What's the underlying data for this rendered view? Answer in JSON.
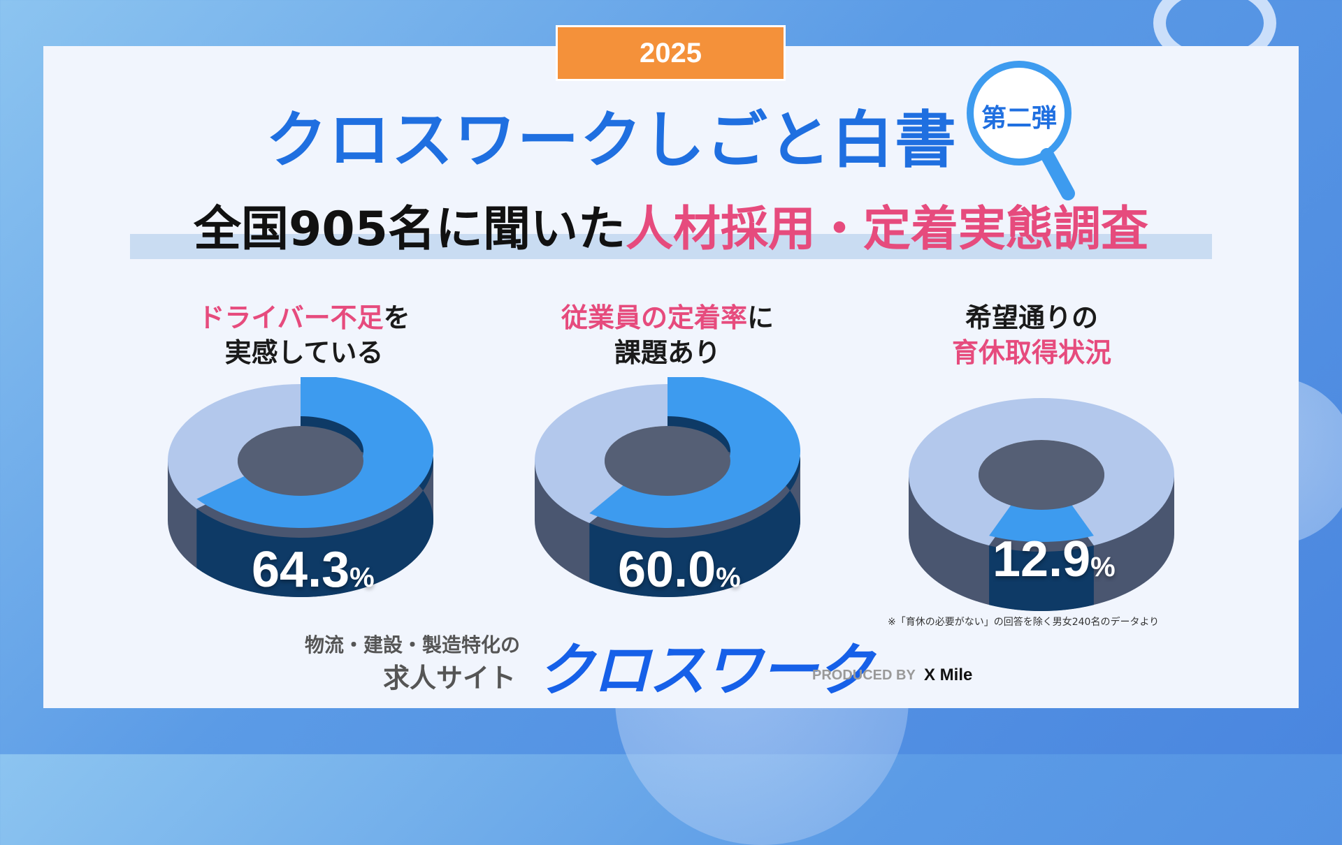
{
  "header": {
    "year": "2025",
    "title": "クロスワークしごと白書",
    "badge": "第二弾",
    "subtitle_black": "全国905名に聞いた",
    "subtitle_pink": "人材採用・定着実態調査"
  },
  "items": [
    {
      "label_pink": "ドライバー不足",
      "label_black": "を",
      "label_line2": "実感している",
      "value": "64.3",
      "unit": "%"
    },
    {
      "label_pink": "従業員の定着率",
      "label_black": "に",
      "label_line2": "課題あり",
      "value": "60.0",
      "unit": "%"
    },
    {
      "label_line1": "希望通りの",
      "label_pink2": "育休取得状況",
      "value": "12.9",
      "unit": "%"
    }
  ],
  "footnote": "※「育休の必要がない」の回答を除く男女240名のデータより",
  "footer": {
    "tag_line1": "物流・建設・製造特化の",
    "tag_line2": "求人サイト",
    "brand": "クロスワーク",
    "produced_by": "PRODUCED BY",
    "company": "X Mile"
  },
  "colors": {
    "accent_blue": "#1f6fe0",
    "pink": "#e64b7d",
    "orange": "#f4913a",
    "donut_highlight": "#3d9bef",
    "donut_rest": "#b3c8ec"
  },
  "chart_data": [
    {
      "type": "pie",
      "values": [
        64.3,
        35.7
      ]
    },
    {
      "type": "pie",
      "values": [
        60.0,
        40.0
      ]
    },
    {
      "type": "pie",
      "values": [
        12.9,
        87.1
      ]
    }
  ]
}
